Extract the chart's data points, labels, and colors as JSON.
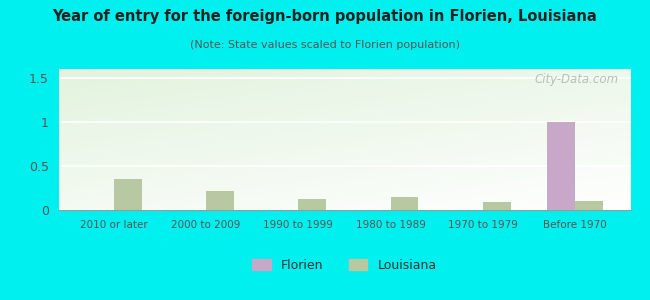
{
  "title": "Year of entry for the foreign-born population in Florien, Louisiana",
  "subtitle": "(Note: State values scaled to Florien population)",
  "categories": [
    "2010 or later",
    "2000 to 2009",
    "1990 to 1999",
    "1980 to 1989",
    "1970 to 1979",
    "Before 1970"
  ],
  "florien_values": [
    0,
    0,
    0,
    0,
    0,
    1.0
  ],
  "louisiana_values": [
    0.35,
    0.22,
    0.12,
    0.15,
    0.09,
    0.1
  ],
  "florien_color": "#c8a8c8",
  "louisiana_color": "#b8c8a0",
  "background_color": "#00f0f0",
  "ylim": [
    0,
    1.6
  ],
  "yticks": [
    0,
    0.5,
    1,
    1.5
  ],
  "ytick_labels": [
    "0",
    "0.5",
    "1",
    "1.5"
  ],
  "bar_width": 0.3,
  "watermark": "City-Data.com"
}
